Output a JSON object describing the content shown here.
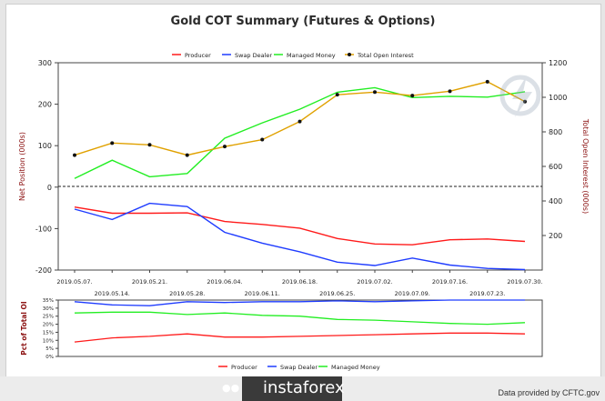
{
  "title": "Gold COT Summary (Futures & Options)",
  "footer": {
    "brand": "instaforex",
    "credit": "Data provided by CFTC.gov"
  },
  "colors": {
    "producer": "#ff1a1a",
    "swap": "#1f3cff",
    "managed": "#22ee22",
    "oi": "#e0a100",
    "marker": "#111111"
  },
  "chart_data": [
    {
      "type": "line",
      "title": "Gold COT Summary (Futures & Options)",
      "ylabel": "Net Position (000s)",
      "y2label": "Total Open Interest (000s)",
      "ylim": [
        -200,
        300
      ],
      "y2lim": [
        0,
        1200
      ],
      "yticks": [
        -200,
        -100,
        0,
        100,
        200,
        300
      ],
      "y2ticks": [
        200,
        400,
        600,
        800,
        1000,
        1200
      ],
      "grid": false,
      "legend_position": "top",
      "x": [
        "2019.05.07.",
        "2019.05.14.",
        "2019.05.21.",
        "2019.05.28.",
        "2019.06.04.",
        "2019.06.11.",
        "2019.06.18.",
        "2019.06.25.",
        "2019.07.02.",
        "2019.07.09.",
        "2019.07.16.",
        "2019.07.23.",
        "2019.07.30."
      ],
      "series": [
        {
          "name": "Producer",
          "color": "#ff1a1a",
          "axis": "left",
          "values": [
            -48,
            -63,
            -63,
            -62,
            -83,
            -90,
            -99,
            -124,
            -137,
            -139,
            -127,
            -125,
            -131
          ]
        },
        {
          "name": "Swap Dealer",
          "color": "#1f3cff",
          "axis": "left",
          "values": [
            -53,
            -78,
            -39,
            -47,
            -109,
            -135,
            -156,
            -181,
            -189,
            -171,
            -188,
            -196,
            -199
          ]
        },
        {
          "name": "Managed Money",
          "color": "#22ee22",
          "axis": "left",
          "values": [
            21,
            65,
            25,
            33,
            118,
            155,
            188,
            229,
            240,
            216,
            219,
            217,
            230
          ]
        },
        {
          "name": "Total Open Interest",
          "color": "#e0a100",
          "axis": "right",
          "markers": true,
          "values": [
            665,
            735,
            725,
            665,
            715,
            755,
            860,
            1015,
            1030,
            1010,
            1035,
            1090,
            975
          ]
        }
      ]
    },
    {
      "type": "line",
      "ylabel": "Pct of Total OI",
      "ylim": [
        0,
        35
      ],
      "yticks": [
        "0%",
        "5%",
        "10%",
        "15%",
        "20%",
        "25%",
        "30%",
        "35%"
      ],
      "legend_position": "bottom",
      "series": [
        {
          "name": "Producer",
          "color": "#ff1a1a",
          "values": [
            9,
            11.5,
            12.5,
            14,
            12,
            12,
            12.5,
            13,
            13.5,
            14,
            14.5,
            14.5,
            14
          ]
        },
        {
          "name": "Swap Dealer",
          "color": "#1f3cff",
          "values": [
            34,
            32,
            31.5,
            34,
            33.5,
            34,
            34,
            34.5,
            34,
            34.5,
            35,
            35,
            35
          ]
        },
        {
          "name": "Managed Money",
          "color": "#22ee22",
          "values": [
            27,
            27.5,
            27.5,
            26,
            27,
            25.5,
            25,
            23,
            22.5,
            21.5,
            20.5,
            20,
            21
          ]
        }
      ]
    }
  ]
}
